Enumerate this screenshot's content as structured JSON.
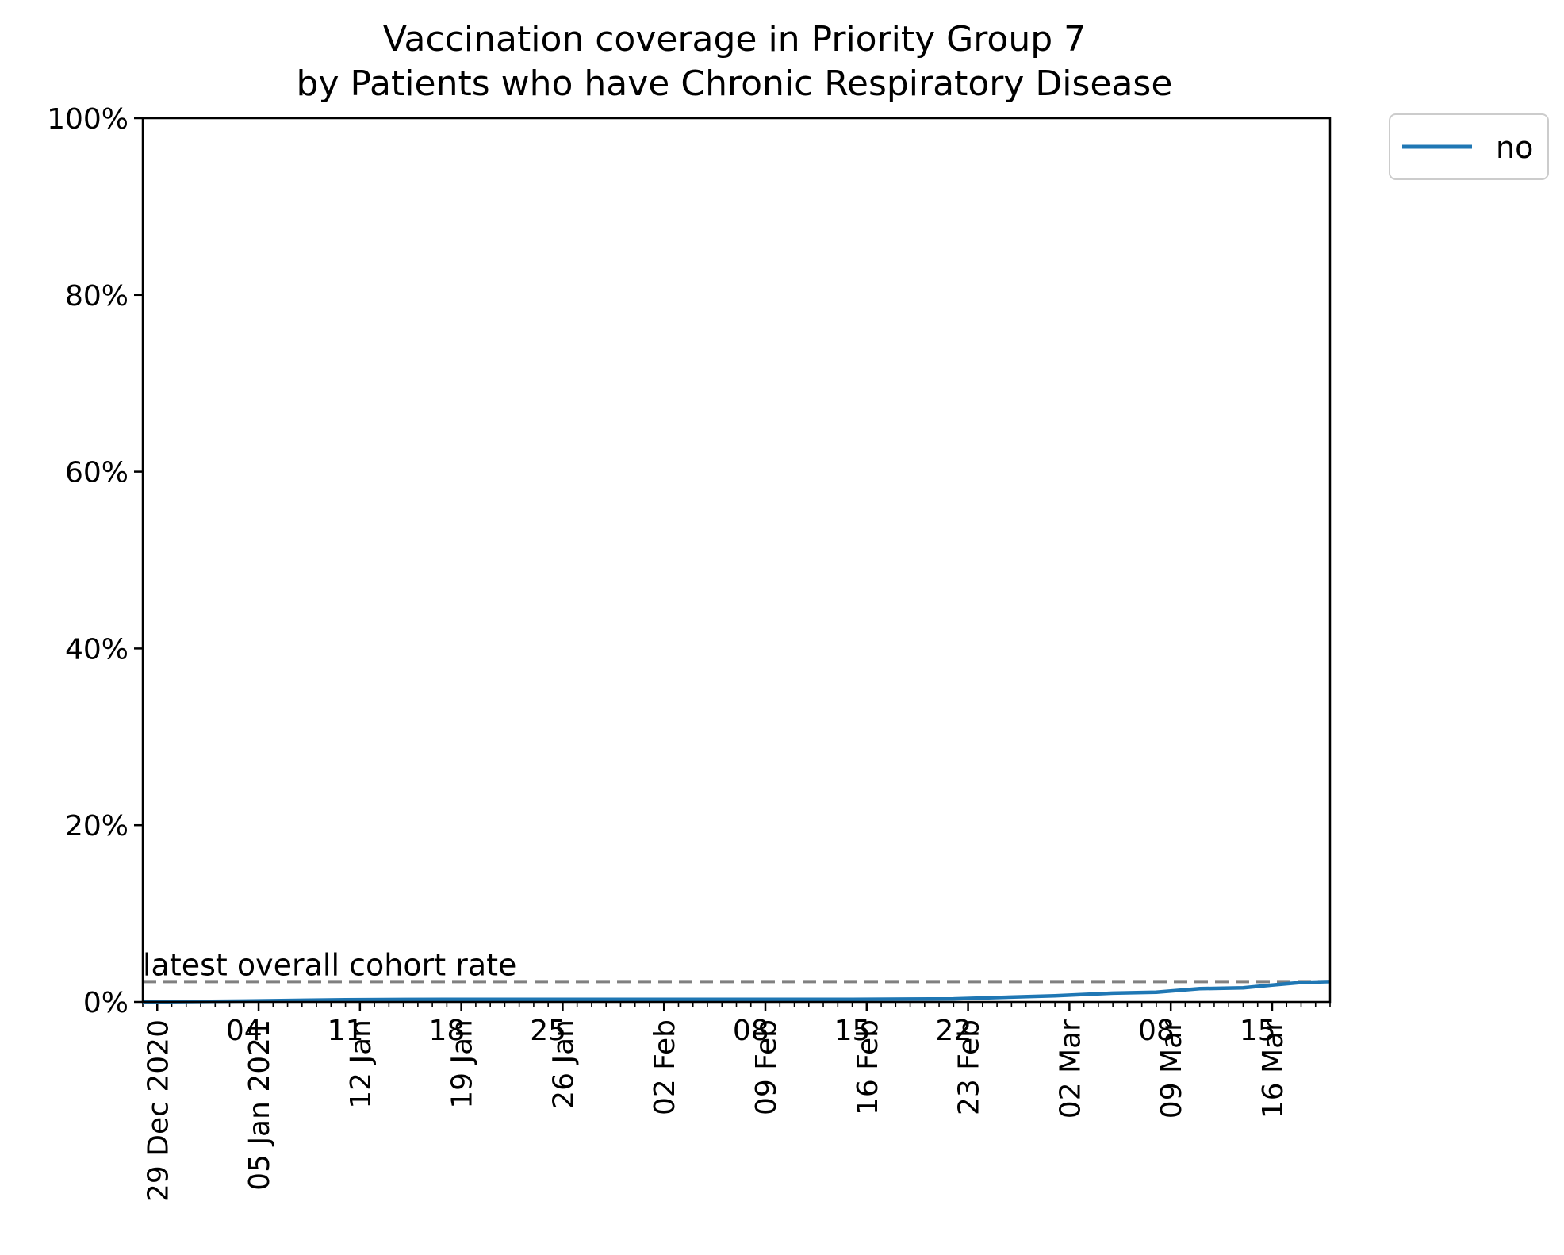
{
  "chart_data": {
    "type": "line",
    "title": "Vaccination coverage in Priority Group 7",
    "subtitle": "by Patients who have Chronic Respiratory Disease",
    "xlabel": "",
    "ylabel": "",
    "x_range": [
      "2020-12-28",
      "2021-03-20"
    ],
    "ylim": [
      0,
      100
    ],
    "y_unit": "%",
    "y_ticks": [
      {
        "value": 0,
        "label": "0%"
      },
      {
        "value": 20,
        "label": "20%"
      },
      {
        "value": 40,
        "label": "40%"
      },
      {
        "value": 60,
        "label": "60%"
      },
      {
        "value": 80,
        "label": "80%"
      },
      {
        "value": 100,
        "label": "100%"
      }
    ],
    "x_ticks_major": [
      {
        "date": "2020-12-29",
        "label": "29 Dec 2020"
      },
      {
        "date": "2021-01-05",
        "label": "05 Jan 2021"
      },
      {
        "date": "2021-01-12",
        "label": "12 Jan"
      },
      {
        "date": "2021-01-19",
        "label": "19 Jan"
      },
      {
        "date": "2021-01-26",
        "label": "26 Jan"
      },
      {
        "date": "2021-02-02",
        "label": "02 Feb"
      },
      {
        "date": "2021-02-09",
        "label": "09 Feb"
      },
      {
        "date": "2021-02-16",
        "label": "16 Feb"
      },
      {
        "date": "2021-02-23",
        "label": "23 Feb"
      },
      {
        "date": "2021-03-02",
        "label": "02 Mar"
      },
      {
        "date": "2021-03-09",
        "label": "09 Mar"
      },
      {
        "date": "2021-03-16",
        "label": "16 Mar"
      }
    ],
    "x_ticks_overlay": [
      {
        "date": "2021-01-04",
        "label": "04"
      },
      {
        "date": "2021-01-11",
        "label": "11"
      },
      {
        "date": "2021-01-18",
        "label": "18"
      },
      {
        "date": "2021-01-25",
        "label": "25"
      },
      {
        "date": "2021-02-08",
        "label": "08"
      },
      {
        "date": "2021-02-15",
        "label": "15"
      },
      {
        "date": "2021-02-22",
        "label": "22"
      },
      {
        "date": "2021-03-08",
        "label": "08"
      },
      {
        "date": "2021-03-15",
        "label": "15"
      }
    ],
    "minor_ticks": "daily",
    "grid": false,
    "legend": {
      "placement": "outside-top-right",
      "entries": [
        "no"
      ]
    },
    "series": [
      {
        "name": "no",
        "color": "#1f77b4",
        "points": [
          {
            "x": "2020-12-28",
            "y": 0.0
          },
          {
            "x": "2021-01-04",
            "y": 0.1
          },
          {
            "x": "2021-01-11",
            "y": 0.25
          },
          {
            "x": "2021-01-18",
            "y": 0.3
          },
          {
            "x": "2021-01-25",
            "y": 0.3
          },
          {
            "x": "2021-02-01",
            "y": 0.3
          },
          {
            "x": "2021-02-08",
            "y": 0.3
          },
          {
            "x": "2021-02-15",
            "y": 0.3
          },
          {
            "x": "2021-02-22",
            "y": 0.35
          },
          {
            "x": "2021-03-01",
            "y": 0.7
          },
          {
            "x": "2021-03-05",
            "y": 1.0
          },
          {
            "x": "2021-03-08",
            "y": 1.1
          },
          {
            "x": "2021-03-11",
            "y": 1.5
          },
          {
            "x": "2021-03-14",
            "y": 1.6
          },
          {
            "x": "2021-03-16",
            "y": 1.9
          },
          {
            "x": "2021-03-18",
            "y": 2.2
          },
          {
            "x": "2021-03-20",
            "y": 2.3
          }
        ]
      }
    ],
    "reference_line": {
      "label": "latest overall cohort rate",
      "y": 2.3,
      "color": "#808080",
      "style": "dashed"
    }
  }
}
